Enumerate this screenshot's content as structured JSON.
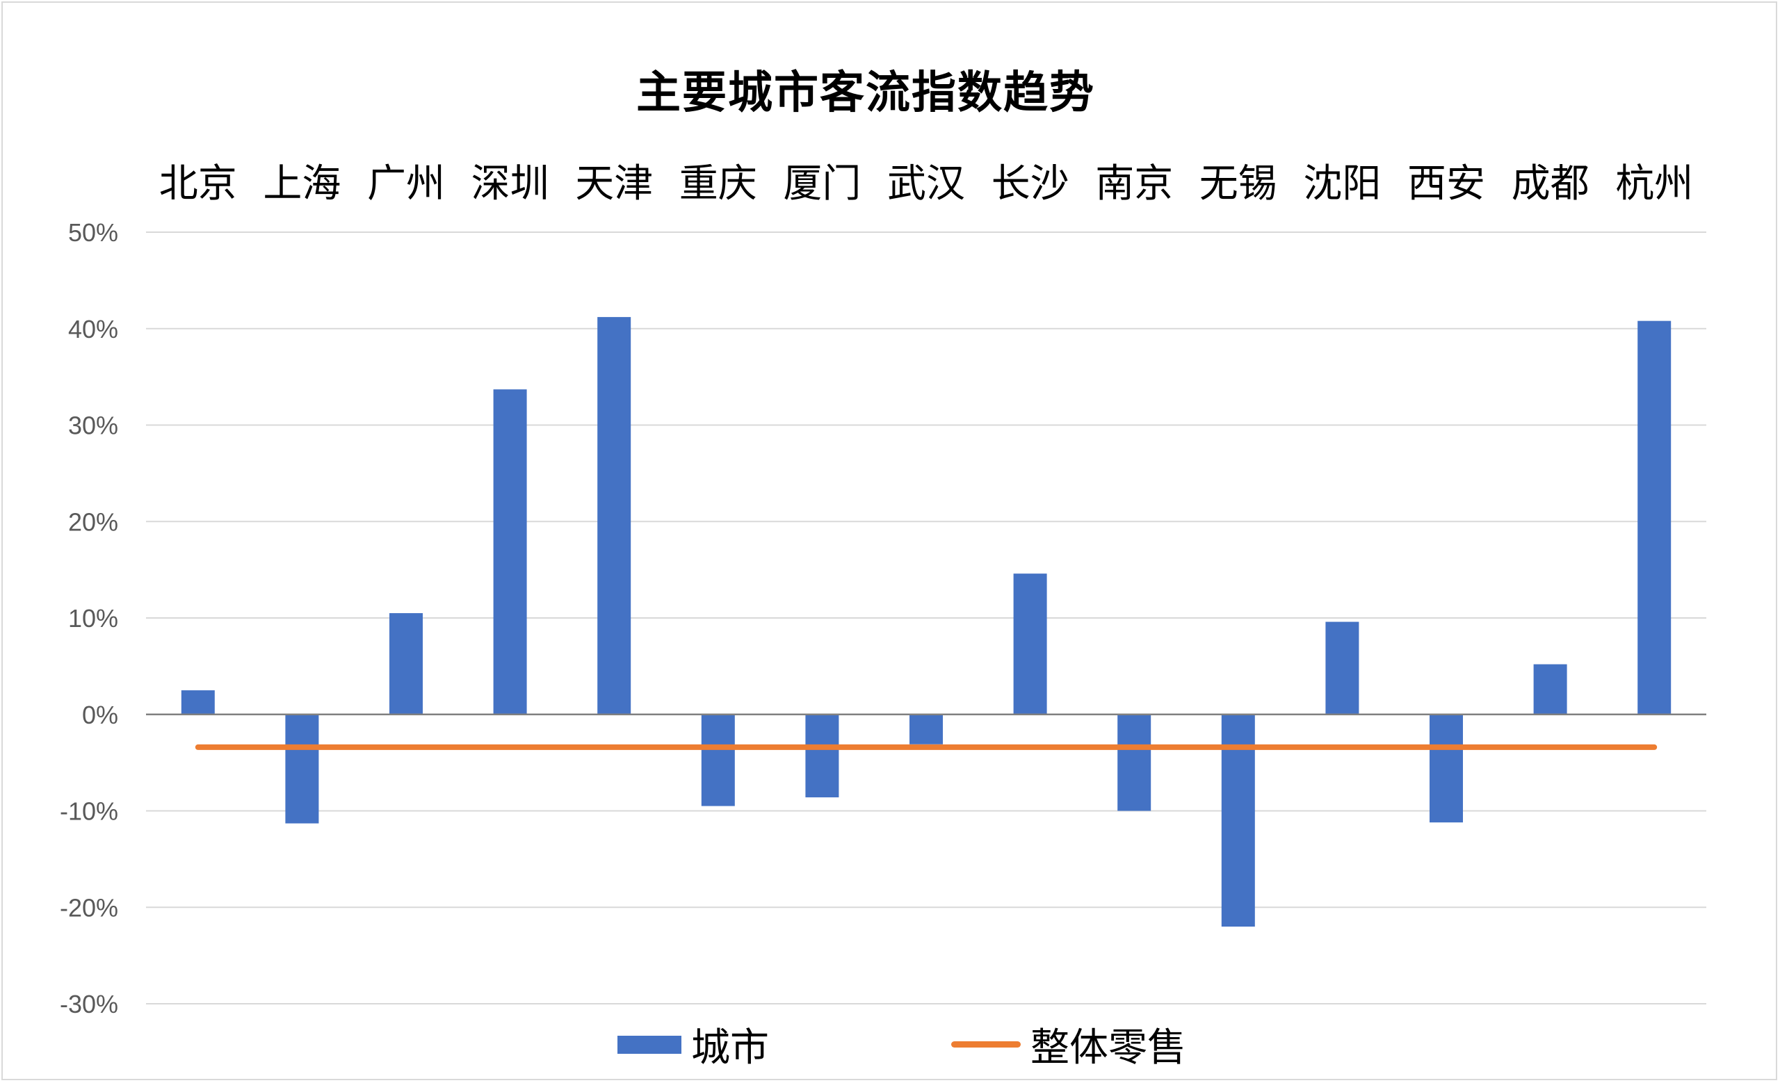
{
  "chart_data": {
    "type": "bar",
    "title": "主要城市客流指数趋势",
    "categories": [
      "北京",
      "上海",
      "广州",
      "深圳",
      "天津",
      "重庆",
      "厦门",
      "武汉",
      "长沙",
      "南京",
      "无锡",
      "沈阳",
      "西安",
      "成都",
      "杭州"
    ],
    "series": [
      {
        "name": "城市",
        "type": "bar",
        "color": "#4472C4",
        "values": [
          2.5,
          -11.3,
          10.5,
          33.7,
          41.2,
          -9.5,
          -8.6,
          -3.1,
          14.6,
          -10.0,
          -22.0,
          9.6,
          -11.2,
          5.2,
          40.8
        ]
      },
      {
        "name": "整体零售",
        "type": "line",
        "color": "#ED7D31",
        "values": [
          -3.4,
          -3.4,
          -3.4,
          -3.4,
          -3.4,
          -3.4,
          -3.4,
          -3.4,
          -3.4,
          -3.4,
          -3.4,
          -3.4,
          -3.4,
          -3.4,
          -3.4
        ]
      }
    ],
    "ylim": [
      -30,
      50
    ],
    "y_ticks": [
      "50%",
      "40%",
      "30%",
      "20%",
      "10%",
      "0%",
      "-10%",
      "-20%",
      "-30%"
    ],
    "y_tick_values": [
      50,
      40,
      30,
      20,
      10,
      0,
      -10,
      -20,
      -30
    ],
    "xlabel": "",
    "ylabel": "",
    "x_axis_position": "top",
    "grid": true,
    "legend_position": "bottom"
  }
}
